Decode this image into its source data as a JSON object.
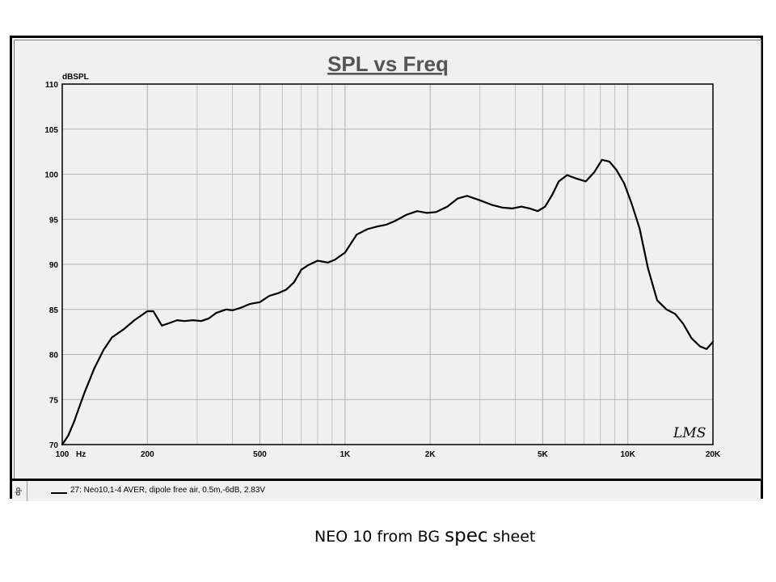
{
  "chart_data": {
    "type": "line",
    "title": "SPL vs Freq",
    "ylabel": "dBSPL",
    "xlabel": "",
    "xscale": "log",
    "xlim": [
      100,
      20000
    ],
    "ylim": [
      70,
      110
    ],
    "grid": true,
    "y_ticks": [
      {
        "value": 70,
        "label": "70"
      },
      {
        "value": 75,
        "label": "75"
      },
      {
        "value": 80,
        "label": "80"
      },
      {
        "value": 85,
        "label": "85"
      },
      {
        "value": 90,
        "label": "90"
      },
      {
        "value": 95,
        "label": "95"
      },
      {
        "value": 100,
        "label": "100"
      },
      {
        "value": 105,
        "label": "105"
      },
      {
        "value": 110,
        "label": "110"
      }
    ],
    "x_ticks": [
      {
        "value": 100,
        "label": "100"
      },
      {
        "value": 200,
        "label": "200"
      },
      {
        "value": 500,
        "label": "500"
      },
      {
        "value": 1000,
        "label": "1K"
      },
      {
        "value": 2000,
        "label": "2K"
      },
      {
        "value": 5000,
        "label": "5K"
      },
      {
        "value": 10000,
        "label": "10K"
      },
      {
        "value": 20000,
        "label": "20K"
      }
    ],
    "x_unit_label": "Hz",
    "series": [
      {
        "name": "27: Neo10,1-4 AVER, dipole free air, 0.5m,-6dB, 2.83V",
        "color": "#000000",
        "x": [
          100,
          105,
          110,
          115,
          120,
          130,
          140,
          150,
          165,
          180,
          200,
          210,
          225,
          240,
          255,
          270,
          290,
          310,
          330,
          350,
          380,
          400,
          430,
          460,
          500,
          540,
          580,
          620,
          660,
          700,
          740,
          800,
          870,
          920,
          1000,
          1100,
          1200,
          1300,
          1400,
          1500,
          1650,
          1800,
          1950,
          2100,
          2300,
          2500,
          2700,
          3000,
          3300,
          3600,
          3900,
          4200,
          4500,
          4800,
          5100,
          5400,
          5700,
          6100,
          6600,
          7100,
          7600,
          8100,
          8600,
          9100,
          9700,
          10300,
          11000,
          11800,
          12700,
          13700,
          14700,
          15700,
          16800,
          18000,
          19000,
          20000
        ],
        "values": [
          70.0,
          71.0,
          72.5,
          74.2,
          75.8,
          78.5,
          80.5,
          81.9,
          82.8,
          83.8,
          84.8,
          84.8,
          83.2,
          83.5,
          83.8,
          83.7,
          83.8,
          83.7,
          84.0,
          84.6,
          85.0,
          84.9,
          85.2,
          85.6,
          85.8,
          86.5,
          86.8,
          87.2,
          88.0,
          89.4,
          89.9,
          90.4,
          90.2,
          90.5,
          91.3,
          93.3,
          93.9,
          94.2,
          94.4,
          94.8,
          95.5,
          95.9,
          95.7,
          95.8,
          96.4,
          97.3,
          97.6,
          97.1,
          96.6,
          96.3,
          96.2,
          96.4,
          96.2,
          95.9,
          96.4,
          97.7,
          99.2,
          99.9,
          99.5,
          99.2,
          100.2,
          101.6,
          101.4,
          100.5,
          99.0,
          96.8,
          94.0,
          89.5,
          86.0,
          85.0,
          84.5,
          83.4,
          81.8,
          80.9,
          80.6,
          81.4
        ]
      }
    ]
  },
  "chart_labels": {
    "y_unit": "dBSPL",
    "x_unit": "Hz",
    "watermark": "LMS"
  },
  "legend": {
    "entry": "27: Neo10,1-4 AVER, dipole free air, 0.5m,-6dB, 2.83V",
    "side_label": "dp"
  },
  "caption": {
    "part1": "NEO 10 from BG ",
    "part2": "spec",
    "part3": " sheet"
  },
  "colors": {
    "panel_bg": "#f0f0f0",
    "title": "#555555",
    "grid": "#b4b4b4",
    "curve": "#000000"
  }
}
